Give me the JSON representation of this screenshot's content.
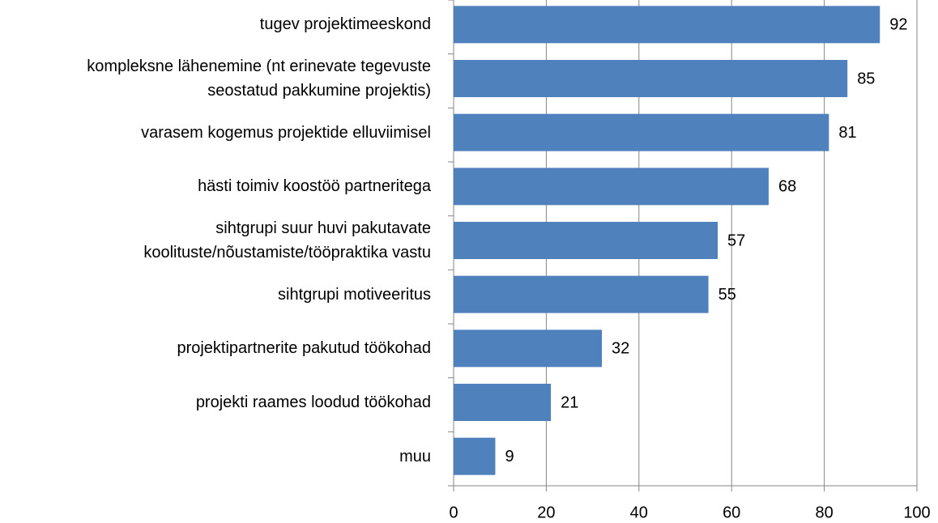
{
  "chart_data": {
    "type": "barh",
    "categories": [
      "tugev projektimeeskond",
      "kompleksne lähenemine (nt erinevate tegevuste\nseostatud pakkumine projektis)",
      "varasem kogemus projektide elluviimisel",
      "hästi toimiv koostöö partneritega",
      "sihtgrupi suur huvi pakutavate\nkoolituste/nõustamiste/tööpraktika vastu",
      "sihtgrupi motiveeritus",
      "projektipartnerite pakutud töökohad",
      "projekti raames loodud töökohad",
      "muu"
    ],
    "values": [
      92,
      85,
      81,
      68,
      57,
      55,
      32,
      21,
      9
    ],
    "color": "#4f81bd",
    "xlim": [
      0,
      100
    ],
    "xticks": [
      0,
      20,
      40,
      60,
      80,
      100
    ],
    "grid": true
  }
}
